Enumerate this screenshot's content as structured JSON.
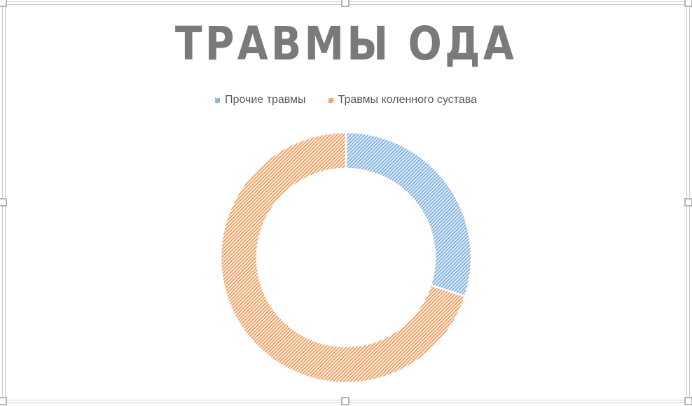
{
  "chart_data": {
    "type": "pie",
    "subtype": "doughnut",
    "title": "ТРАВМЫ ОДА",
    "labels": [
      "Прочие травмы",
      "Травмы коленного сустава"
    ],
    "values": [
      30,
      70
    ],
    "colors": [
      "#5B9BD5",
      "#ED7D31"
    ],
    "fill_backgrounds": [
      "#dbe8f7",
      "#fcead9"
    ],
    "pattern_fill": "light-diagonal-hatch",
    "start_angle_deg": 0,
    "direction": "clockwise",
    "hole_ratio": 0.71,
    "legend_position": "top",
    "slice_separator_color": "#ffffff",
    "title_color": "#7a7a7a",
    "legend_text_color": "#595959",
    "selection_frame_color": "#c9c9c9"
  }
}
